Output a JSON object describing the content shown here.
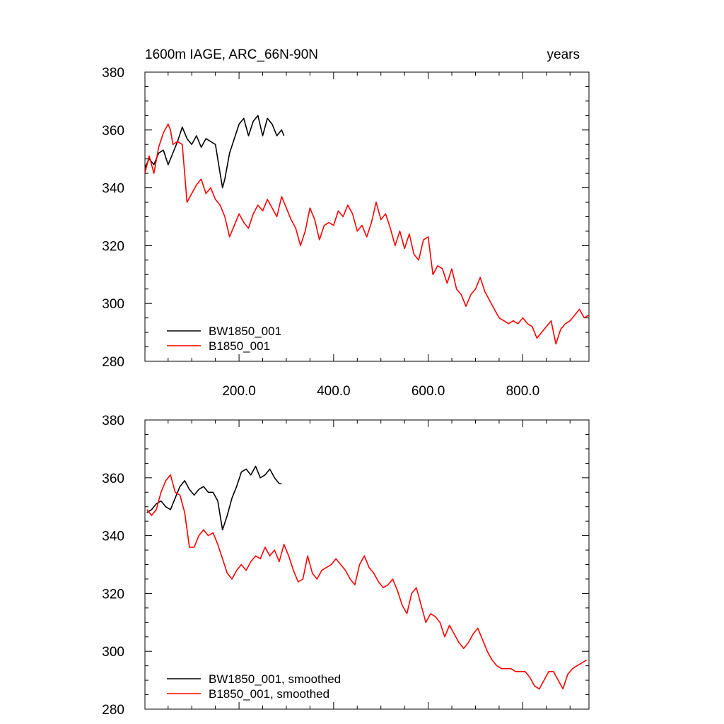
{
  "chart_data": [
    {
      "type": "line",
      "title": "1600m IAGE, ARC_66N-90N",
      "units": "years",
      "xlim": [
        1,
        940
      ],
      "ylim": [
        280,
        380
      ],
      "xticks": [
        200,
        400,
        600,
        800
      ],
      "xtick_labels": [
        "200.0",
        "400.0",
        "600.0",
        "800.0"
      ],
      "yticks": [
        280,
        300,
        320,
        340,
        360,
        380
      ],
      "ytick_labels": [
        "280",
        "300",
        "320",
        "340",
        "360",
        "380"
      ],
      "legend_position": "bottom-left",
      "series": [
        {
          "name": "BW1850_001",
          "color": "#000000",
          "x": [
            1,
            10,
            20,
            30,
            40,
            50,
            60,
            70,
            80,
            90,
            100,
            110,
            120,
            130,
            140,
            150,
            160,
            165,
            170,
            180,
            190,
            200,
            210,
            220,
            230,
            240,
            250,
            260,
            270,
            280,
            290,
            295
          ],
          "y": [
            347,
            350,
            348,
            352,
            353,
            348,
            352,
            356,
            361,
            357,
            355,
            358,
            354,
            357,
            356,
            355,
            345,
            340,
            343,
            352,
            357,
            362,
            364,
            358,
            363,
            365,
            358,
            364,
            362,
            358,
            360,
            358
          ]
        },
        {
          "name": "B1850_001",
          "color": "#ff0000",
          "x": [
            1,
            10,
            20,
            30,
            40,
            50,
            55,
            60,
            70,
            80,
            90,
            100,
            110,
            120,
            130,
            140,
            150,
            160,
            170,
            180,
            190,
            200,
            210,
            220,
            230,
            240,
            250,
            260,
            270,
            280,
            290,
            300,
            310,
            320,
            330,
            340,
            350,
            360,
            370,
            380,
            390,
            400,
            410,
            420,
            430,
            440,
            450,
            460,
            470,
            480,
            490,
            500,
            510,
            520,
            530,
            540,
            550,
            560,
            570,
            580,
            590,
            600,
            610,
            620,
            630,
            640,
            650,
            660,
            670,
            680,
            690,
            700,
            710,
            720,
            730,
            740,
            750,
            760,
            770,
            780,
            790,
            800,
            810,
            820,
            830,
            840,
            850,
            860,
            870,
            880,
            890,
            900,
            910,
            920,
            930,
            940
          ],
          "y": [
            345,
            351,
            345,
            354,
            359,
            362,
            360,
            355,
            356,
            355,
            335,
            338,
            341,
            343,
            338,
            340,
            336,
            334,
            330,
            323,
            327,
            331,
            328,
            326,
            331,
            334,
            332,
            336,
            333,
            330,
            337,
            333,
            329,
            326,
            320,
            325,
            333,
            329,
            322,
            327,
            328,
            327,
            332,
            330,
            334,
            331,
            325,
            327,
            323,
            328,
            335,
            329,
            331,
            326,
            320,
            325,
            319,
            324,
            317,
            315,
            322,
            323,
            310,
            313,
            312,
            307,
            312,
            305,
            303,
            299,
            303,
            305,
            309,
            304,
            301,
            298,
            295,
            294,
            293,
            294,
            293,
            295,
            293,
            292,
            288,
            290,
            292,
            294,
            286,
            291,
            293,
            294,
            296,
            298,
            295,
            296
          ]
        }
      ]
    },
    {
      "type": "line",
      "title": "",
      "units": "",
      "xlim": [
        1,
        940
      ],
      "ylim": [
        280,
        380
      ],
      "xticks": [
        200,
        400,
        600,
        800
      ],
      "xtick_labels": [],
      "yticks": [
        280,
        300,
        320,
        340,
        360,
        380
      ],
      "ytick_labels": [
        "280",
        "300",
        "320",
        "340",
        "360",
        "380"
      ],
      "legend_position": "bottom-left",
      "series": [
        {
          "name": "BW1850_001, smoothed",
          "color": "#000000",
          "x": [
            5,
            15,
            25,
            35,
            45,
            55,
            65,
            75,
            85,
            95,
            105,
            115,
            125,
            135,
            145,
            155,
            165,
            175,
            185,
            195,
            205,
            215,
            225,
            235,
            245,
            255,
            265,
            275,
            285,
            290
          ],
          "y": [
            348,
            349,
            351,
            352,
            350,
            349,
            353,
            357,
            359,
            356,
            354,
            356,
            357,
            355,
            355,
            352,
            342,
            347,
            353,
            357,
            362,
            363,
            361,
            364,
            360,
            361,
            363,
            360,
            358,
            358
          ]
        },
        {
          "name": "B1850_001, smoothed",
          "color": "#ff0000",
          "x": [
            5,
            15,
            25,
            35,
            45,
            55,
            65,
            75,
            85,
            95,
            105,
            115,
            125,
            135,
            145,
            155,
            165,
            175,
            185,
            195,
            205,
            215,
            225,
            235,
            245,
            255,
            265,
            275,
            285,
            295,
            305,
            315,
            325,
            335,
            345,
            355,
            365,
            375,
            385,
            395,
            405,
            415,
            425,
            435,
            445,
            455,
            465,
            475,
            485,
            495,
            505,
            515,
            525,
            535,
            545,
            555,
            565,
            575,
            585,
            595,
            605,
            615,
            625,
            635,
            645,
            655,
            665,
            675,
            685,
            695,
            705,
            715,
            725,
            735,
            745,
            755,
            765,
            775,
            785,
            795,
            805,
            815,
            825,
            835,
            845,
            855,
            865,
            875,
            885,
            895,
            905,
            915,
            925,
            935
          ],
          "y": [
            349,
            347,
            349,
            355,
            359,
            361,
            355,
            354,
            348,
            336,
            336,
            340,
            342,
            340,
            341,
            337,
            332,
            327,
            325,
            328,
            330,
            328,
            331,
            333,
            332,
            336,
            333,
            335,
            331,
            337,
            333,
            328,
            324,
            325,
            333,
            327,
            325,
            328,
            329,
            330,
            332,
            330,
            328,
            325,
            323,
            330,
            333,
            329,
            327,
            324,
            322,
            323,
            325,
            321,
            316,
            313,
            320,
            322,
            316,
            310,
            313,
            312,
            310,
            305,
            309,
            306,
            303,
            301,
            303,
            306,
            308,
            304,
            300,
            297,
            295,
            294,
            294,
            294,
            293,
            293,
            293,
            291,
            288,
            287,
            290,
            293,
            293,
            290,
            287,
            292,
            294,
            295,
            296,
            297
          ]
        }
      ]
    }
  ]
}
